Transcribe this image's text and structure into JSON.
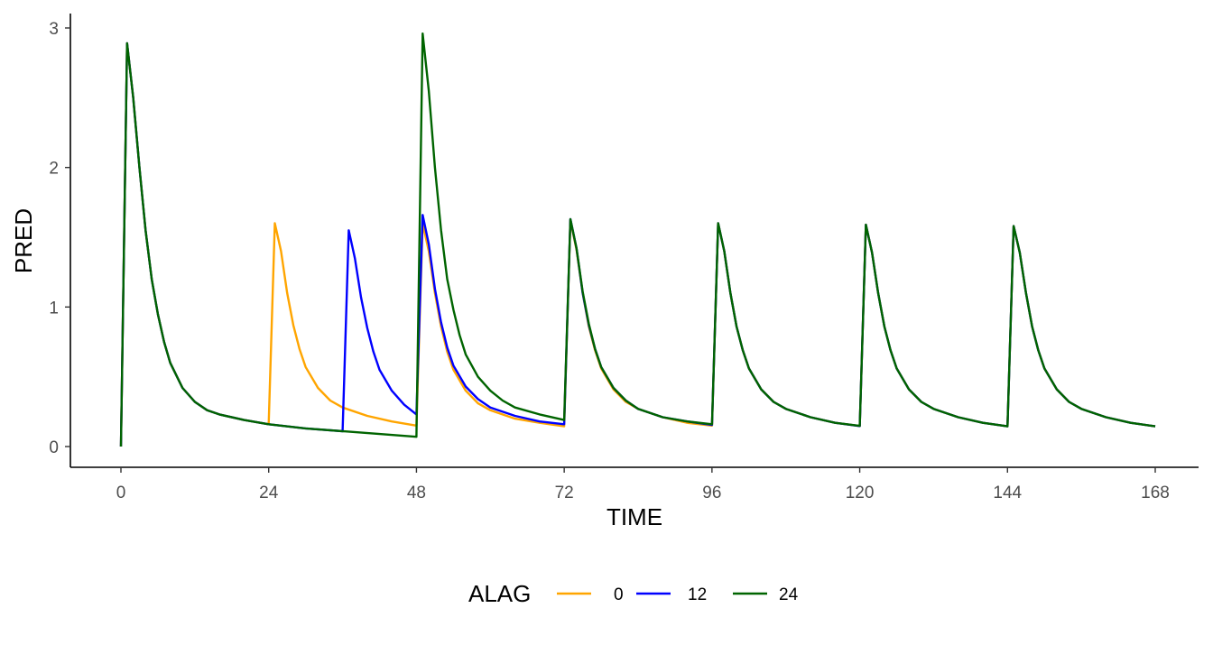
{
  "chart_data": {
    "type": "line",
    "title": "",
    "xlabel": "TIME",
    "ylabel": "PRED",
    "xlim": [
      -5,
      175
    ],
    "ylim": [
      -0.15,
      3.1
    ],
    "xticks": [
      0,
      24,
      48,
      72,
      96,
      120,
      144,
      168
    ],
    "yticks": [
      0,
      1,
      2,
      3
    ],
    "grid": false,
    "legend": {
      "title": "ALAG",
      "position": "bottom"
    },
    "series": [
      {
        "name": "0",
        "color": "#FFA500",
        "points": [
          [
            0,
            0
          ],
          [
            1,
            2.89
          ],
          [
            2,
            2.5
          ],
          [
            3,
            2.0
          ],
          [
            4,
            1.55
          ],
          [
            5,
            1.2
          ],
          [
            6,
            0.95
          ],
          [
            7,
            0.75
          ],
          [
            8,
            0.6
          ],
          [
            10,
            0.42
          ],
          [
            12,
            0.32
          ],
          [
            14,
            0.26
          ],
          [
            16,
            0.23
          ],
          [
            20,
            0.19
          ],
          [
            24,
            0.16
          ],
          [
            25,
            1.6
          ],
          [
            26,
            1.4
          ],
          [
            27,
            1.1
          ],
          [
            28,
            0.87
          ],
          [
            29,
            0.7
          ],
          [
            30,
            0.57
          ],
          [
            32,
            0.42
          ],
          [
            34,
            0.33
          ],
          [
            36,
            0.28
          ],
          [
            40,
            0.22
          ],
          [
            44,
            0.18
          ],
          [
            48,
            0.15
          ],
          [
            49,
            1.6
          ],
          [
            50,
            1.4
          ],
          [
            51,
            1.1
          ],
          [
            52,
            0.86
          ],
          [
            53,
            0.68
          ],
          [
            54,
            0.55
          ],
          [
            56,
            0.4
          ],
          [
            58,
            0.31
          ],
          [
            60,
            0.26
          ],
          [
            64,
            0.2
          ],
          [
            68,
            0.17
          ],
          [
            72,
            0.145
          ],
          [
            73,
            1.62
          ],
          [
            74,
            1.41
          ],
          [
            75,
            1.1
          ],
          [
            76,
            0.86
          ],
          [
            77,
            0.69
          ],
          [
            78,
            0.56
          ],
          [
            80,
            0.41
          ],
          [
            82,
            0.32
          ],
          [
            84,
            0.27
          ],
          [
            88,
            0.21
          ],
          [
            92,
            0.17
          ],
          [
            96,
            0.15
          ],
          [
            97,
            1.6
          ],
          [
            98,
            1.4
          ],
          [
            99,
            1.1
          ],
          [
            100,
            0.86
          ],
          [
            101,
            0.69
          ],
          [
            102,
            0.56
          ],
          [
            104,
            0.41
          ],
          [
            106,
            0.32
          ],
          [
            108,
            0.27
          ],
          [
            112,
            0.21
          ],
          [
            116,
            0.17
          ],
          [
            120,
            0.147
          ],
          [
            121,
            1.59
          ],
          [
            122,
            1.39
          ],
          [
            123,
            1.1
          ],
          [
            124,
            0.86
          ],
          [
            125,
            0.69
          ],
          [
            126,
            0.56
          ],
          [
            128,
            0.41
          ],
          [
            130,
            0.32
          ],
          [
            132,
            0.27
          ],
          [
            136,
            0.21
          ],
          [
            140,
            0.17
          ],
          [
            144,
            0.145
          ],
          [
            145,
            1.58
          ],
          [
            146,
            1.39
          ],
          [
            147,
            1.1
          ],
          [
            148,
            0.86
          ],
          [
            149,
            0.69
          ],
          [
            150,
            0.56
          ],
          [
            152,
            0.41
          ],
          [
            154,
            0.32
          ],
          [
            156,
            0.27
          ],
          [
            160,
            0.21
          ],
          [
            164,
            0.17
          ],
          [
            168,
            0.145
          ]
        ]
      },
      {
        "name": "12",
        "color": "#0000FF",
        "points": [
          [
            0,
            0
          ],
          [
            1,
            2.89
          ],
          [
            2,
            2.5
          ],
          [
            3,
            2.0
          ],
          [
            4,
            1.55
          ],
          [
            5,
            1.2
          ],
          [
            6,
            0.95
          ],
          [
            7,
            0.75
          ],
          [
            8,
            0.6
          ],
          [
            10,
            0.42
          ],
          [
            12,
            0.32
          ],
          [
            14,
            0.26
          ],
          [
            16,
            0.23
          ],
          [
            20,
            0.19
          ],
          [
            24,
            0.16
          ],
          [
            30,
            0.13
          ],
          [
            36,
            0.11
          ],
          [
            37,
            1.55
          ],
          [
            38,
            1.35
          ],
          [
            39,
            1.07
          ],
          [
            40,
            0.85
          ],
          [
            41,
            0.68
          ],
          [
            42,
            0.55
          ],
          [
            44,
            0.4
          ],
          [
            46,
            0.3
          ],
          [
            48,
            0.23
          ],
          [
            49,
            1.66
          ],
          [
            50,
            1.45
          ],
          [
            51,
            1.13
          ],
          [
            52,
            0.89
          ],
          [
            53,
            0.71
          ],
          [
            54,
            0.58
          ],
          [
            56,
            0.43
          ],
          [
            58,
            0.34
          ],
          [
            60,
            0.28
          ],
          [
            64,
            0.22
          ],
          [
            68,
            0.18
          ],
          [
            72,
            0.16
          ],
          [
            73,
            1.63
          ],
          [
            74,
            1.42
          ],
          [
            75,
            1.1
          ],
          [
            76,
            0.87
          ],
          [
            77,
            0.7
          ],
          [
            78,
            0.57
          ],
          [
            80,
            0.42
          ],
          [
            82,
            0.33
          ],
          [
            84,
            0.27
          ],
          [
            88,
            0.21
          ],
          [
            92,
            0.18
          ],
          [
            96,
            0.155
          ],
          [
            97,
            1.6
          ],
          [
            98,
            1.4
          ],
          [
            99,
            1.1
          ],
          [
            100,
            0.86
          ],
          [
            101,
            0.69
          ],
          [
            102,
            0.56
          ],
          [
            104,
            0.41
          ],
          [
            106,
            0.32
          ],
          [
            108,
            0.27
          ],
          [
            112,
            0.21
          ],
          [
            116,
            0.17
          ],
          [
            120,
            0.147
          ],
          [
            121,
            1.59
          ],
          [
            122,
            1.39
          ],
          [
            123,
            1.1
          ],
          [
            124,
            0.86
          ],
          [
            125,
            0.69
          ],
          [
            126,
            0.56
          ],
          [
            128,
            0.41
          ],
          [
            130,
            0.32
          ],
          [
            132,
            0.27
          ],
          [
            136,
            0.21
          ],
          [
            140,
            0.17
          ],
          [
            144,
            0.145
          ],
          [
            145,
            1.58
          ],
          [
            146,
            1.39
          ],
          [
            147,
            1.1
          ],
          [
            148,
            0.86
          ],
          [
            149,
            0.69
          ],
          [
            150,
            0.56
          ],
          [
            152,
            0.41
          ],
          [
            154,
            0.32
          ],
          [
            156,
            0.27
          ],
          [
            160,
            0.21
          ],
          [
            164,
            0.17
          ],
          [
            168,
            0.145
          ]
        ]
      },
      {
        "name": "24",
        "color": "#006400",
        "points": [
          [
            0,
            0
          ],
          [
            1,
            2.89
          ],
          [
            2,
            2.5
          ],
          [
            3,
            2.0
          ],
          [
            4,
            1.55
          ],
          [
            5,
            1.2
          ],
          [
            6,
            0.95
          ],
          [
            7,
            0.75
          ],
          [
            8,
            0.6
          ],
          [
            10,
            0.42
          ],
          [
            12,
            0.32
          ],
          [
            14,
            0.26
          ],
          [
            16,
            0.23
          ],
          [
            20,
            0.19
          ],
          [
            24,
            0.16
          ],
          [
            30,
            0.13
          ],
          [
            36,
            0.11
          ],
          [
            42,
            0.09
          ],
          [
            48,
            0.07
          ],
          [
            49,
            2.96
          ],
          [
            50,
            2.55
          ],
          [
            51,
            2.0
          ],
          [
            52,
            1.55
          ],
          [
            53,
            1.2
          ],
          [
            54,
            0.98
          ],
          [
            55,
            0.8
          ],
          [
            56,
            0.66
          ],
          [
            58,
            0.5
          ],
          [
            60,
            0.4
          ],
          [
            62,
            0.33
          ],
          [
            64,
            0.28
          ],
          [
            68,
            0.23
          ],
          [
            72,
            0.19
          ],
          [
            73,
            1.63
          ],
          [
            74,
            1.42
          ],
          [
            75,
            1.11
          ],
          [
            76,
            0.88
          ],
          [
            77,
            0.7
          ],
          [
            78,
            0.57
          ],
          [
            80,
            0.42
          ],
          [
            82,
            0.33
          ],
          [
            84,
            0.27
          ],
          [
            88,
            0.21
          ],
          [
            92,
            0.18
          ],
          [
            96,
            0.16
          ],
          [
            97,
            1.6
          ],
          [
            98,
            1.4
          ],
          [
            99,
            1.1
          ],
          [
            100,
            0.86
          ],
          [
            101,
            0.69
          ],
          [
            102,
            0.56
          ],
          [
            104,
            0.41
          ],
          [
            106,
            0.32
          ],
          [
            108,
            0.27
          ],
          [
            112,
            0.21
          ],
          [
            116,
            0.17
          ],
          [
            120,
            0.148
          ],
          [
            121,
            1.59
          ],
          [
            122,
            1.39
          ],
          [
            123,
            1.1
          ],
          [
            124,
            0.86
          ],
          [
            125,
            0.69
          ],
          [
            126,
            0.56
          ],
          [
            128,
            0.41
          ],
          [
            130,
            0.32
          ],
          [
            132,
            0.27
          ],
          [
            136,
            0.21
          ],
          [
            140,
            0.17
          ],
          [
            144,
            0.145
          ],
          [
            145,
            1.58
          ],
          [
            146,
            1.39
          ],
          [
            147,
            1.1
          ],
          [
            148,
            0.86
          ],
          [
            149,
            0.69
          ],
          [
            150,
            0.56
          ],
          [
            152,
            0.41
          ],
          [
            154,
            0.32
          ],
          [
            156,
            0.27
          ],
          [
            160,
            0.21
          ],
          [
            164,
            0.17
          ],
          [
            168,
            0.145
          ]
        ]
      }
    ]
  }
}
